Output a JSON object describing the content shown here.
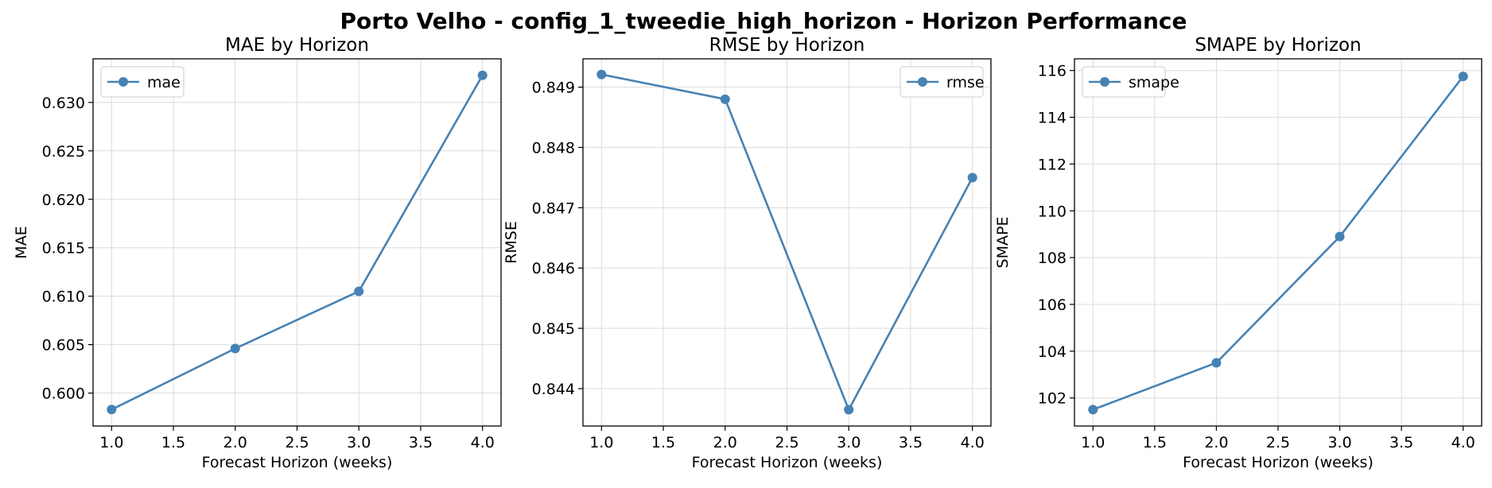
{
  "figure": {
    "suptitle": "Porto Velho - config_1_tweedie_high_horizon - Horizon Performance",
    "line_color": "#4682b4"
  },
  "chart_data": [
    {
      "type": "line",
      "title": "MAE by Horizon",
      "xlabel": "Forecast Horizon (weeks)",
      "ylabel": "MAE",
      "legend_position": "upper-left",
      "grid": true,
      "x": [
        1,
        2,
        3,
        4
      ],
      "xlim": [
        0.85,
        4.15
      ],
      "ylim": [
        0.5966,
        0.6345
      ],
      "xticks": [
        "1.0",
        "1.5",
        "2.0",
        "2.5",
        "3.0",
        "3.5",
        "4.0"
      ],
      "yticks": [
        "0.600",
        "0.605",
        "0.610",
        "0.615",
        "0.620",
        "0.625",
        "0.630"
      ],
      "series": [
        {
          "name": "mae",
          "values": [
            0.5983,
            0.6046,
            0.6105,
            0.6328
          ]
        }
      ]
    },
    {
      "type": "line",
      "title": "RMSE by Horizon",
      "xlabel": "Forecast Horizon (weeks)",
      "ylabel": "RMSE",
      "legend_position": "upper-right",
      "grid": true,
      "x": [
        1,
        2,
        3,
        4
      ],
      "xlim": [
        0.85,
        4.15
      ],
      "ylim": [
        0.84338,
        0.84947
      ],
      "xticks": [
        "1.0",
        "1.5",
        "2.0",
        "2.5",
        "3.0",
        "3.5",
        "4.0"
      ],
      "yticks": [
        "0.844",
        "0.845",
        "0.846",
        "0.847",
        "0.848",
        "0.849"
      ],
      "series": [
        {
          "name": "rmse",
          "values": [
            0.84921,
            0.8488,
            0.84365,
            0.8475
          ]
        }
      ]
    },
    {
      "type": "line",
      "title": "SMAPE by Horizon",
      "xlabel": "Forecast Horizon (weeks)",
      "ylabel": "SMAPE",
      "legend_position": "upper-left",
      "grid": true,
      "x": [
        1,
        2,
        3,
        4
      ],
      "xlim": [
        0.85,
        4.15
      ],
      "ylim": [
        100.8,
        116.5
      ],
      "xticks": [
        "1.0",
        "1.5",
        "2.0",
        "2.5",
        "3.0",
        "3.5",
        "4.0"
      ],
      "yticks": [
        "102",
        "104",
        "106",
        "108",
        "110",
        "112",
        "114",
        "116"
      ],
      "series": [
        {
          "name": "smape",
          "values": [
            101.5,
            103.5,
            108.9,
            115.75
          ]
        }
      ]
    }
  ]
}
